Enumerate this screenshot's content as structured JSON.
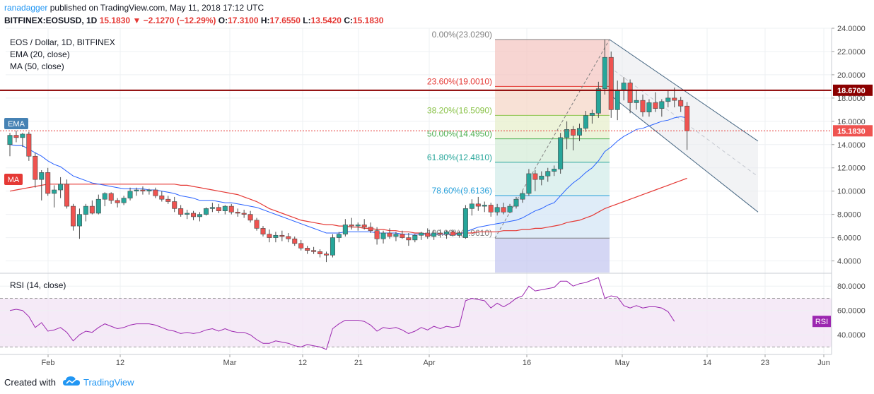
{
  "header": {
    "author": "ranadagger",
    "published_text": "published on TradingView.com, May 11, 2018 17:12 UTC",
    "symbol": "BITFINEX:EOSUSD, 1D",
    "price": "15.1830",
    "change": "−2.1270 (−12.29%)",
    "ohlc": {
      "o_label": "O:",
      "o": "17.3100",
      "h_label": "H:",
      "h": "17.6550",
      "l_label": "L:",
      "l": "13.5420",
      "c_label": "C:",
      "c": "15.1830"
    }
  },
  "legend": {
    "title": "EOS / Dollar, 1D, BITFINEX",
    "ema": "EMA (20, close)",
    "ma": "MA (50, close)",
    "ema_tag": "EMA",
    "ma_tag": "MA"
  },
  "rsi_panel": {
    "title": "RSI (14, close)",
    "tag": "RSI"
  },
  "price_axis": {
    "ticks": [
      "24.0000",
      "22.0000",
      "20.0000",
      "18.0000",
      "16.0000",
      "14.0000",
      "12.0000",
      "10.0000",
      "8.0000",
      "6.0000",
      "4.0000"
    ],
    "horizontal_line_label": "18.6700",
    "last_price_label": "15.1830"
  },
  "rsi_axis": {
    "ticks": [
      "80.0000",
      "60.0000",
      "40.0000"
    ]
  },
  "time_axis": {
    "ticks": [
      "Feb",
      "12",
      "Mar",
      "12",
      "21",
      "Apr",
      "16",
      "May",
      "14",
      "23",
      "Jun"
    ]
  },
  "fibonacci": [
    {
      "label": "0.00%(23.0290)",
      "price": 23.029,
      "color": "#808080"
    },
    {
      "label": "23.60%(19.0010)",
      "price": 19.001,
      "color": "#e53935"
    },
    {
      "label": "38.20%(16.5090)",
      "price": 16.509,
      "color": "#8bc34a"
    },
    {
      "label": "50.00%(14.4950)",
      "price": 14.495,
      "color": "#4caf50"
    },
    {
      "label": "61.80%(12.4810)",
      "price": 12.481,
      "color": "#26a69a"
    },
    {
      "label": "78.60%(9.6136)",
      "price": 9.6136,
      "color": "#26a0da"
    },
    {
      "label": "100.00%(5.9610)",
      "price": 5.961,
      "color": "#808080"
    }
  ],
  "colors": {
    "up": "#26a69a",
    "down": "#ef5350",
    "ema": "#2962ff",
    "ma": "#e53935",
    "rsi": "#9c27b0",
    "hline": "#8b0000",
    "channel": "#4a6a85"
  },
  "footer": {
    "created_with": "Created with",
    "brand": "TradingView"
  },
  "chart_data": {
    "type": "candlestick",
    "price_range": [
      3.0,
      24.0
    ],
    "horizontal_level": 18.67,
    "last_close": 15.183,
    "candles": [
      {
        "o": 14.0,
        "h": 15.0,
        "l": 13.0,
        "c": 14.8
      },
      {
        "o": 14.8,
        "h": 15.2,
        "l": 14.2,
        "c": 14.6
      },
      {
        "o": 14.6,
        "h": 15.0,
        "l": 13.8,
        "c": 14.9
      },
      {
        "o": 14.9,
        "h": 15.1,
        "l": 12.6,
        "c": 13.0
      },
      {
        "o": 13.0,
        "h": 13.3,
        "l": 10.3,
        "c": 11.0
      },
      {
        "o": 11.0,
        "h": 11.8,
        "l": 9.2,
        "c": 11.6
      },
      {
        "o": 11.6,
        "h": 12.0,
        "l": 9.6,
        "c": 9.8
      },
      {
        "o": 9.8,
        "h": 10.5,
        "l": 8.6,
        "c": 10.1
      },
      {
        "o": 10.1,
        "h": 11.2,
        "l": 9.4,
        "c": 10.6
      },
      {
        "o": 10.6,
        "h": 11.0,
        "l": 8.5,
        "c": 8.7
      },
      {
        "o": 8.7,
        "h": 8.9,
        "l": 6.6,
        "c": 7.0
      },
      {
        "o": 7.0,
        "h": 8.5,
        "l": 5.9,
        "c": 8.0
      },
      {
        "o": 8.0,
        "h": 8.9,
        "l": 7.4,
        "c": 8.7
      },
      {
        "o": 8.7,
        "h": 9.2,
        "l": 8.0,
        "c": 8.1
      },
      {
        "o": 8.1,
        "h": 9.7,
        "l": 8.0,
        "c": 9.3
      },
      {
        "o": 9.3,
        "h": 9.9,
        "l": 8.7,
        "c": 9.8
      },
      {
        "o": 9.8,
        "h": 9.9,
        "l": 8.9,
        "c": 9.2
      },
      {
        "o": 9.2,
        "h": 9.4,
        "l": 8.6,
        "c": 9.0
      },
      {
        "o": 9.0,
        "h": 9.6,
        "l": 8.8,
        "c": 9.4
      },
      {
        "o": 9.4,
        "h": 10.3,
        "l": 9.2,
        "c": 10.0
      },
      {
        "o": 10.0,
        "h": 10.3,
        "l": 9.6,
        "c": 10.1
      },
      {
        "o": 10.1,
        "h": 10.4,
        "l": 9.7,
        "c": 10.0
      },
      {
        "o": 10.0,
        "h": 10.2,
        "l": 9.7,
        "c": 10.1
      },
      {
        "o": 10.1,
        "h": 10.3,
        "l": 9.4,
        "c": 9.6
      },
      {
        "o": 9.6,
        "h": 10.0,
        "l": 9.1,
        "c": 9.3
      },
      {
        "o": 9.3,
        "h": 9.6,
        "l": 8.9,
        "c": 9.1
      },
      {
        "o": 9.1,
        "h": 9.5,
        "l": 8.2,
        "c": 8.5
      },
      {
        "o": 8.5,
        "h": 8.8,
        "l": 7.8,
        "c": 8.0
      },
      {
        "o": 8.0,
        "h": 8.4,
        "l": 7.6,
        "c": 8.1
      },
      {
        "o": 8.1,
        "h": 8.3,
        "l": 7.5,
        "c": 7.8
      },
      {
        "o": 7.8,
        "h": 8.2,
        "l": 7.4,
        "c": 8.0
      },
      {
        "o": 8.0,
        "h": 8.6,
        "l": 7.9,
        "c": 8.5
      },
      {
        "o": 8.5,
        "h": 9.0,
        "l": 8.2,
        "c": 8.6
      },
      {
        "o": 8.6,
        "h": 8.9,
        "l": 8.1,
        "c": 8.3
      },
      {
        "o": 8.3,
        "h": 8.8,
        "l": 8.0,
        "c": 8.7
      },
      {
        "o": 8.7,
        "h": 8.9,
        "l": 8.0,
        "c": 8.2
      },
      {
        "o": 8.2,
        "h": 8.5,
        "l": 7.8,
        "c": 8.1
      },
      {
        "o": 8.1,
        "h": 8.4,
        "l": 7.7,
        "c": 8.0
      },
      {
        "o": 8.0,
        "h": 8.3,
        "l": 7.3,
        "c": 7.5
      },
      {
        "o": 7.5,
        "h": 7.7,
        "l": 6.6,
        "c": 6.8
      },
      {
        "o": 6.8,
        "h": 7.0,
        "l": 6.1,
        "c": 6.3
      },
      {
        "o": 6.3,
        "h": 6.7,
        "l": 5.6,
        "c": 6.0
      },
      {
        "o": 6.0,
        "h": 6.5,
        "l": 5.6,
        "c": 6.2
      },
      {
        "o": 6.2,
        "h": 6.6,
        "l": 5.7,
        "c": 6.1
      },
      {
        "o": 6.1,
        "h": 6.4,
        "l": 5.6,
        "c": 5.9
      },
      {
        "o": 5.9,
        "h": 6.1,
        "l": 5.3,
        "c": 5.5
      },
      {
        "o": 5.5,
        "h": 5.8,
        "l": 4.9,
        "c": 5.1
      },
      {
        "o": 5.1,
        "h": 5.3,
        "l": 4.6,
        "c": 4.9
      },
      {
        "o": 4.9,
        "h": 5.2,
        "l": 4.6,
        "c": 4.8
      },
      {
        "o": 4.8,
        "h": 5.0,
        "l": 4.3,
        "c": 4.6
      },
      {
        "o": 4.6,
        "h": 4.8,
        "l": 3.9,
        "c": 4.5
      },
      {
        "o": 4.5,
        "h": 6.3,
        "l": 4.3,
        "c": 6.0
      },
      {
        "o": 6.0,
        "h": 6.5,
        "l": 5.6,
        "c": 6.3
      },
      {
        "o": 6.3,
        "h": 7.6,
        "l": 6.1,
        "c": 7.1
      },
      {
        "o": 7.1,
        "h": 7.7,
        "l": 6.7,
        "c": 7.0
      },
      {
        "o": 7.0,
        "h": 7.3,
        "l": 6.6,
        "c": 7.1
      },
      {
        "o": 7.1,
        "h": 7.6,
        "l": 6.7,
        "c": 6.9
      },
      {
        "o": 6.9,
        "h": 7.3,
        "l": 6.4,
        "c": 6.6
      },
      {
        "o": 6.6,
        "h": 6.9,
        "l": 5.4,
        "c": 5.9
      },
      {
        "o": 5.9,
        "h": 6.6,
        "l": 5.5,
        "c": 6.4
      },
      {
        "o": 6.4,
        "h": 6.8,
        "l": 5.9,
        "c": 6.1
      },
      {
        "o": 6.1,
        "h": 6.5,
        "l": 5.7,
        "c": 6.3
      },
      {
        "o": 6.3,
        "h": 6.6,
        "l": 5.9,
        "c": 6.0
      },
      {
        "o": 6.0,
        "h": 6.4,
        "l": 5.3,
        "c": 5.8
      },
      {
        "o": 5.8,
        "h": 6.3,
        "l": 5.6,
        "c": 6.2
      },
      {
        "o": 6.2,
        "h": 6.5,
        "l": 5.8,
        "c": 6.4
      },
      {
        "o": 6.4,
        "h": 6.8,
        "l": 5.9,
        "c": 6.1
      },
      {
        "o": 6.1,
        "h": 6.6,
        "l": 5.8,
        "c": 6.4
      },
      {
        "o": 6.4,
        "h": 6.7,
        "l": 6.0,
        "c": 6.3
      },
      {
        "o": 6.3,
        "h": 6.6,
        "l": 5.9,
        "c": 6.5
      },
      {
        "o": 6.5,
        "h": 6.7,
        "l": 6.1,
        "c": 6.2
      },
      {
        "o": 6.2,
        "h": 6.6,
        "l": 6.0,
        "c": 6.4
      },
      {
        "o": 6.0,
        "h": 8.8,
        "l": 5.9,
        "c": 8.5
      },
      {
        "o": 8.5,
        "h": 9.3,
        "l": 7.9,
        "c": 8.9
      },
      {
        "o": 8.9,
        "h": 9.5,
        "l": 8.3,
        "c": 8.7
      },
      {
        "o": 8.7,
        "h": 9.1,
        "l": 8.2,
        "c": 8.8
      },
      {
        "o": 8.8,
        "h": 9.0,
        "l": 7.8,
        "c": 8.2
      },
      {
        "o": 8.2,
        "h": 8.9,
        "l": 7.9,
        "c": 8.6
      },
      {
        "o": 8.6,
        "h": 9.0,
        "l": 8.0,
        "c": 8.2
      },
      {
        "o": 8.2,
        "h": 8.9,
        "l": 8.1,
        "c": 8.7
      },
      {
        "o": 8.7,
        "h": 9.5,
        "l": 8.5,
        "c": 9.3
      },
      {
        "o": 9.3,
        "h": 10.0,
        "l": 9.0,
        "c": 9.8
      },
      {
        "o": 9.8,
        "h": 11.9,
        "l": 9.6,
        "c": 11.5
      },
      {
        "o": 11.5,
        "h": 11.8,
        "l": 10.0,
        "c": 11.0
      },
      {
        "o": 11.0,
        "h": 11.7,
        "l": 10.5,
        "c": 11.3
      },
      {
        "o": 11.3,
        "h": 12.0,
        "l": 10.8,
        "c": 11.7
      },
      {
        "o": 11.7,
        "h": 12.2,
        "l": 11.3,
        "c": 11.9
      },
      {
        "o": 11.9,
        "h": 15.0,
        "l": 11.5,
        "c": 14.6
      },
      {
        "o": 14.6,
        "h": 16.0,
        "l": 13.6,
        "c": 15.3
      },
      {
        "o": 15.3,
        "h": 15.6,
        "l": 13.5,
        "c": 14.8
      },
      {
        "o": 14.8,
        "h": 15.8,
        "l": 14.3,
        "c": 15.4
      },
      {
        "o": 15.4,
        "h": 16.9,
        "l": 15.1,
        "c": 16.5
      },
      {
        "o": 16.5,
        "h": 17.0,
        "l": 15.8,
        "c": 16.7
      },
      {
        "o": 16.7,
        "h": 19.4,
        "l": 16.3,
        "c": 18.8
      },
      {
        "o": 18.8,
        "h": 23.03,
        "l": 18.3,
        "c": 21.5
      },
      {
        "o": 21.5,
        "h": 22.0,
        "l": 16.3,
        "c": 17.0
      },
      {
        "o": 17.0,
        "h": 19.5,
        "l": 16.1,
        "c": 18.7
      },
      {
        "o": 18.7,
        "h": 19.8,
        "l": 17.8,
        "c": 19.3
      },
      {
        "o": 19.3,
        "h": 19.6,
        "l": 16.7,
        "c": 17.6
      },
      {
        "o": 17.6,
        "h": 18.7,
        "l": 17.0,
        "c": 17.8
      },
      {
        "o": 17.8,
        "h": 18.3,
        "l": 16.4,
        "c": 16.8
      },
      {
        "o": 16.8,
        "h": 17.9,
        "l": 16.4,
        "c": 17.6
      },
      {
        "o": 17.6,
        "h": 18.5,
        "l": 16.8,
        "c": 17.1
      },
      {
        "o": 17.1,
        "h": 17.9,
        "l": 16.4,
        "c": 17.7
      },
      {
        "o": 17.7,
        "h": 18.6,
        "l": 17.2,
        "c": 18.0
      },
      {
        "o": 18.0,
        "h": 18.9,
        "l": 17.2,
        "c": 17.8
      },
      {
        "o": 17.8,
        "h": 18.1,
        "l": 16.8,
        "c": 17.31
      },
      {
        "o": 17.31,
        "h": 17.655,
        "l": 13.542,
        "c": 15.183
      }
    ],
    "ema_20": [
      14.0,
      13.9,
      13.9,
      13.6,
      13.3,
      13.0,
      12.6,
      12.3,
      12.1,
      11.7,
      11.3,
      11.1,
      10.9,
      10.7,
      10.6,
      10.5,
      10.4,
      10.3,
      10.2,
      10.2,
      10.2,
      10.2,
      10.1,
      10.1,
      10.0,
      9.9,
      9.8,
      9.6,
      9.5,
      9.4,
      9.2,
      9.2,
      9.2,
      9.1,
      9.0,
      9.0,
      8.9,
      8.8,
      8.7,
      8.6,
      8.4,
      8.2,
      8.0,
      7.8,
      7.6,
      7.4,
      7.2,
      7.0,
      6.8,
      6.6,
      6.4,
      6.4,
      6.4,
      6.5,
      6.5,
      6.5,
      6.5,
      6.5,
      6.4,
      6.4,
      6.4,
      6.4,
      6.3,
      6.3,
      6.3,
      6.3,
      6.3,
      6.3,
      6.3,
      6.3,
      6.3,
      6.3,
      6.5,
      6.7,
      6.9,
      7.0,
      7.1,
      7.2,
      7.3,
      7.4,
      7.5,
      7.7,
      8.0,
      8.3,
      8.5,
      8.8,
      9.0,
      9.6,
      10.2,
      10.7,
      11.1,
      11.6,
      12.0,
      12.6,
      13.4,
      13.8,
      14.3,
      14.7,
      15.0,
      15.3,
      15.4,
      15.6,
      15.8,
      16.0,
      16.1,
      16.3,
      16.4,
      16.3
    ],
    "ma_50": [
      10.0,
      10.1,
      10.2,
      10.3,
      10.4,
      10.5,
      10.6,
      10.6,
      10.6,
      10.6,
      10.6,
      10.6,
      10.6,
      10.6,
      10.6,
      10.6,
      10.6,
      10.6,
      10.6,
      10.6,
      10.6,
      10.6,
      10.6,
      10.6,
      10.6,
      10.6,
      10.6,
      10.5,
      10.5,
      10.4,
      10.3,
      10.2,
      10.1,
      10.0,
      9.9,
      9.8,
      9.7,
      9.5,
      9.3,
      9.1,
      8.8,
      8.5,
      8.3,
      8.1,
      7.9,
      7.7,
      7.5,
      7.4,
      7.3,
      7.2,
      7.1,
      7.1,
      7.0,
      7.0,
      6.9,
      6.9,
      6.8,
      6.8,
      6.7,
      6.7,
      6.6,
      6.6,
      6.5,
      6.5,
      6.4,
      6.4,
      6.3,
      6.3,
      6.3,
      6.3,
      6.3,
      6.4,
      6.4,
      6.4,
      6.5,
      6.5,
      6.5,
      6.5,
      6.6,
      6.6,
      6.6,
      6.7,
      6.7,
      6.8,
      6.8,
      6.9,
      7.0,
      7.1,
      7.3,
      7.4,
      7.5,
      7.7,
      7.9,
      8.2,
      8.5,
      8.7,
      8.9,
      9.1,
      9.3,
      9.5,
      9.7,
      9.9,
      10.1,
      10.3,
      10.5,
      10.7,
      10.9,
      11.1
    ],
    "rsi_range": [
      25,
      90
    ],
    "rsi_levels": [
      70,
      30
    ],
    "rsi": [
      60,
      61,
      60,
      55,
      46,
      50,
      43,
      44,
      46,
      42,
      35,
      40,
      43,
      42,
      46,
      49,
      47,
      45,
      46,
      48,
      49,
      49,
      49,
      48,
      46,
      44,
      43,
      41,
      42,
      41,
      42,
      44,
      45,
      43,
      45,
      43,
      42,
      42,
      40,
      36,
      33,
      33,
      35,
      34,
      33,
      31,
      30,
      32,
      31,
      30,
      28,
      45,
      49,
      52,
      52,
      52,
      51,
      48,
      43,
      46,
      45,
      46,
      44,
      41,
      43,
      46,
      44,
      47,
      45,
      47,
      46,
      47,
      68,
      70,
      69,
      68,
      62,
      66,
      63,
      66,
      70,
      72,
      80,
      76,
      77,
      78,
      79,
      84,
      84,
      80,
      82,
      83,
      85,
      87,
      70,
      72,
      71,
      64,
      62,
      64,
      62,
      63,
      63,
      62,
      59,
      51
    ]
  }
}
